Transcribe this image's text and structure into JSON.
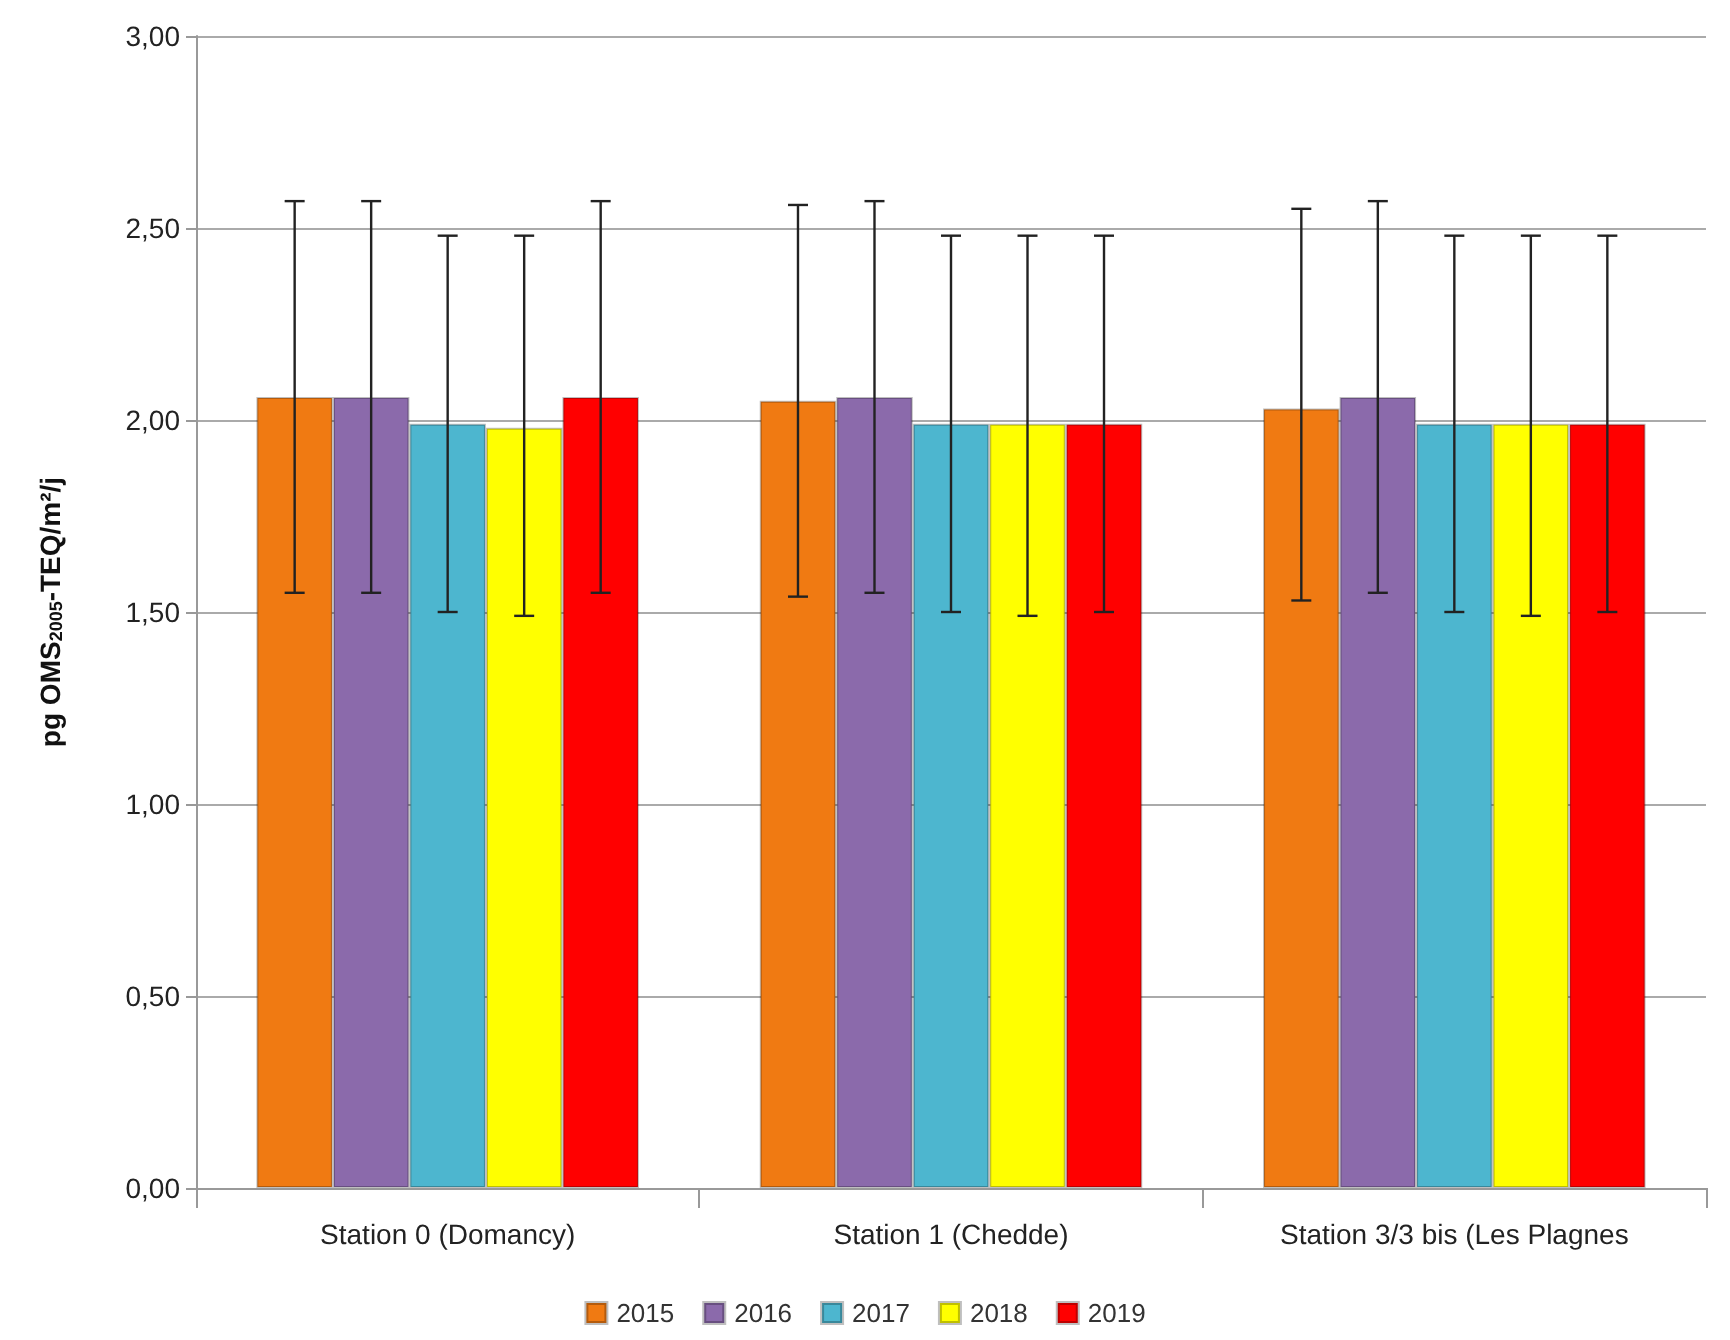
{
  "chart_data": {
    "type": "bar",
    "ylabel": "pg OMS$_{2005}$-TEQ/m²/j",
    "categories": [
      "Station 0 (Domancy)",
      "Station 1 (Chedde)",
      "Station 3/3 bis (Les Plagnes"
    ],
    "series": [
      {
        "name": "2015",
        "color": "#f07a12",
        "values": [
          2.06,
          2.05,
          2.03
        ],
        "errors": [
          [
            1.55,
            2.57
          ],
          [
            1.54,
            2.56
          ],
          [
            1.53,
            2.55
          ]
        ]
      },
      {
        "name": "2016",
        "color": "#8b6aab",
        "values": [
          2.06,
          2.06,
          2.06
        ],
        "errors": [
          [
            1.55,
            2.57
          ],
          [
            1.55,
            2.57
          ],
          [
            1.55,
            2.57
          ]
        ]
      },
      {
        "name": "2017",
        "color": "#4db6cf",
        "values": [
          1.99,
          1.99,
          1.99
        ],
        "errors": [
          [
            1.5,
            2.48
          ],
          [
            1.5,
            2.48
          ],
          [
            1.5,
            2.48
          ]
        ]
      },
      {
        "name": "2018",
        "color": "#ffff00",
        "values": [
          1.98,
          1.99,
          1.99
        ],
        "errors": [
          [
            1.49,
            2.48
          ],
          [
            1.49,
            2.48
          ],
          [
            1.49,
            2.48
          ]
        ]
      },
      {
        "name": "2019",
        "color": "#ff0000",
        "values": [
          2.06,
          1.99,
          1.99
        ],
        "errors": [
          [
            1.55,
            2.57
          ],
          [
            1.5,
            2.48
          ],
          [
            1.5,
            2.48
          ]
        ]
      }
    ],
    "ylim": [
      0,
      3
    ],
    "yticks": [
      {
        "value": 0,
        "label": "0,00"
      },
      {
        "value": 0.5,
        "label": "0,50"
      },
      {
        "value": 1,
        "label": "1,00"
      },
      {
        "value": 1.5,
        "label": "1,50"
      },
      {
        "value": 2,
        "label": "2,00"
      },
      {
        "value": 2.5,
        "label": "2,50"
      },
      {
        "value": 3,
        "label": "3,00"
      }
    ],
    "grid": "y",
    "legend": "bottom"
  }
}
